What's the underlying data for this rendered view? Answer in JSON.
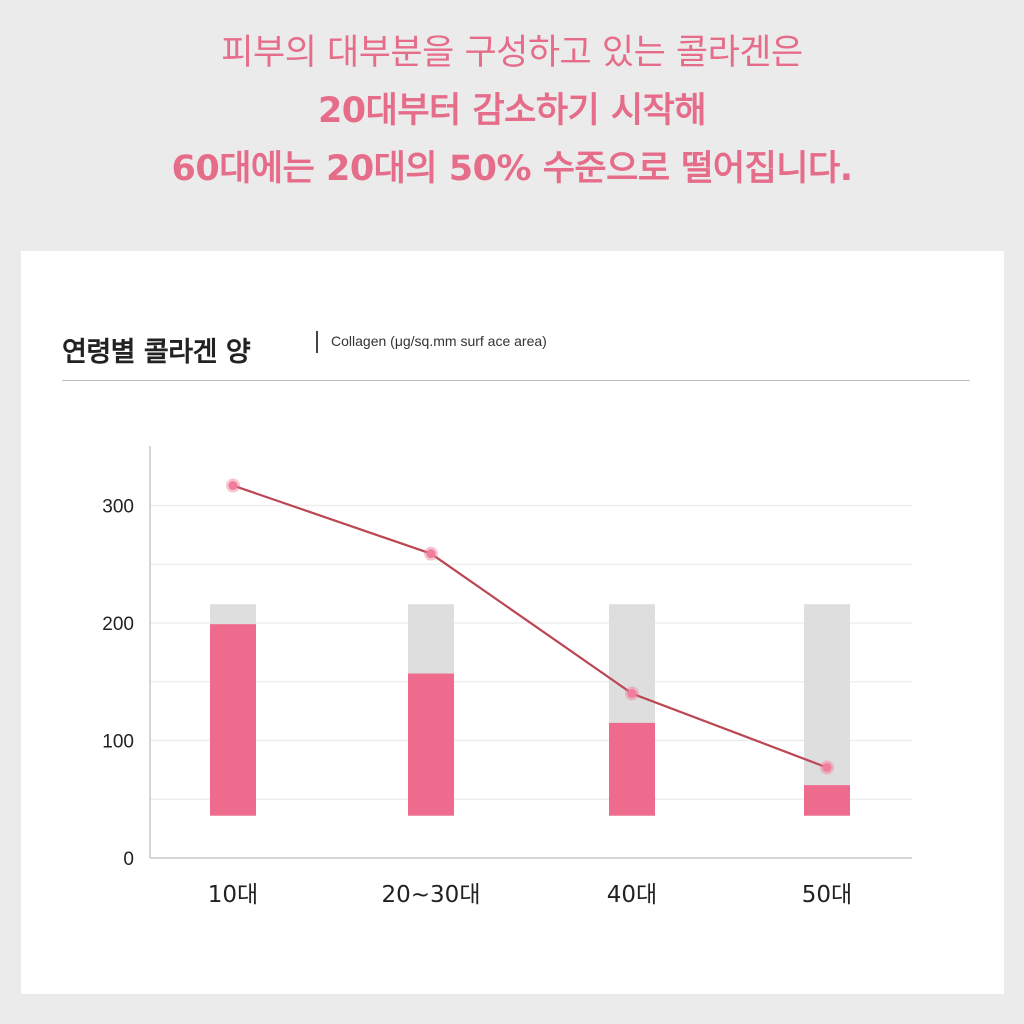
{
  "headline": {
    "line1": "피부의 대부분을 구성하고 있는 콜라겐은",
    "line2": "20대부터 감소하기 시작해",
    "line3": "60대에는 20대의 50% 수준으로 떨어집니다."
  },
  "colors": {
    "background": "#ebebeb",
    "card": "#ffffff",
    "accent_pink": "#ef6b8e",
    "bar_background": "#dedede",
    "line": "#bc4652",
    "marker": "#f07d9c",
    "headline": "#e66d8a"
  },
  "chart_data": {
    "type": "bar",
    "title": "연령별 콜라겐 양",
    "subtitle": "Collagen (μg/sq.mm surf ace area)",
    "categories": [
      "10대",
      "20~30대",
      "40대",
      "50대"
    ],
    "ylim": [
      0,
      350
    ],
    "yticks": [
      0,
      100,
      200,
      300
    ],
    "grid": true,
    "bar_base": 36,
    "series": [
      {
        "kind": "bar_background",
        "values": [
          216,
          216,
          216,
          216
        ]
      },
      {
        "kind": "bar",
        "values": [
          199,
          157,
          115,
          62
        ]
      },
      {
        "kind": "line",
        "values": [
          317,
          259,
          140,
          77
        ]
      }
    ]
  }
}
